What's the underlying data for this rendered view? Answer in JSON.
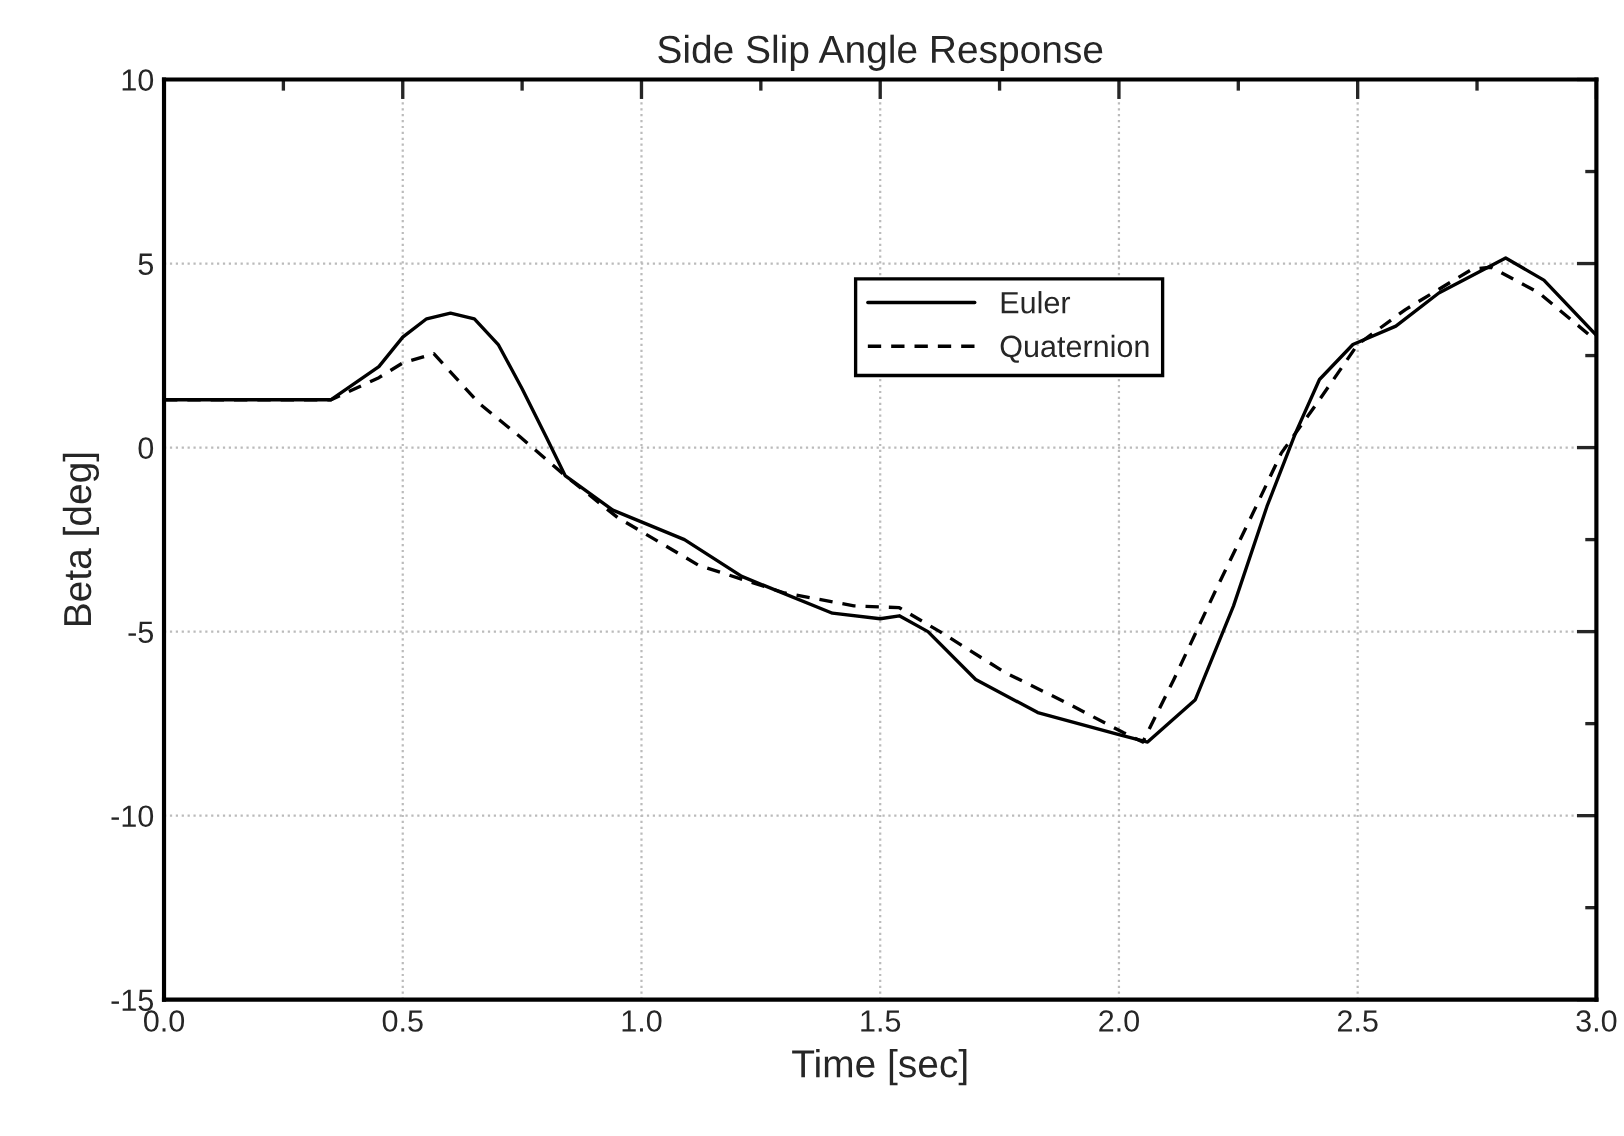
{
  "chart_data": {
    "type": "line",
    "title": "Side Slip Angle Response",
    "xlabel": "Time [sec]",
    "ylabel": "Beta [deg]",
    "xlim": [
      0,
      3
    ],
    "ylim": [
      -15,
      10
    ],
    "xticks": [
      {
        "value": 0,
        "label": "0.0"
      },
      0.5,
      {
        "value": 1,
        "label": "1.0"
      },
      1.5,
      {
        "value": 2,
        "label": "2.0"
      },
      2.5,
      {
        "value": 3,
        "label": "3.0"
      }
    ],
    "yticks": [
      -15,
      -10,
      -5,
      0,
      5,
      10
    ],
    "grid": true,
    "legend": "top center",
    "series": [
      {
        "name": "Euler",
        "color": "#000000",
        "line_style": "solid",
        "x": [
          0,
          0.35,
          0.45,
          0.5,
          0.55,
          0.6,
          0.65,
          0.7,
          0.75,
          0.8,
          0.84,
          0.94,
          1.09,
          1.21,
          1.4,
          1.5,
          1.54,
          1.6,
          1.7,
          1.83,
          2.0,
          2.06,
          2.16,
          2.24,
          2.31,
          2.37,
          2.42,
          2.49,
          2.58,
          2.67,
          2.81,
          2.89,
          3.0
        ],
        "values": [
          1.3,
          1.3,
          2.2,
          3.0,
          3.5,
          3.65,
          3.5,
          2.8,
          1.6,
          0.3,
          -0.76,
          -1.7,
          -2.5,
          -3.5,
          -4.5,
          -4.65,
          -4.57,
          -5.0,
          -6.3,
          -7.2,
          -7.8,
          -8.0,
          -6.85,
          -4.3,
          -1.6,
          0.4,
          1.85,
          2.8,
          3.3,
          4.2,
          5.15,
          4.55,
          3.05
        ]
      },
      {
        "name": "Quaternion",
        "color": "#000000",
        "line_style": "dashed",
        "x": [
          0,
          0.35,
          0.45,
          0.5,
          0.565,
          0.66,
          0.745,
          0.84,
          0.95,
          1.12,
          1.3,
          1.445,
          1.54,
          1.625,
          1.76,
          1.9,
          2.01,
          2.05,
          2.115,
          2.2,
          2.28,
          2.34,
          2.42,
          2.5,
          2.6,
          2.74,
          2.78,
          2.88,
          3.0
        ],
        "values": [
          1.3,
          1.3,
          1.9,
          2.3,
          2.55,
          1.2,
          0.3,
          -0.76,
          -1.9,
          -3.2,
          -3.95,
          -4.3,
          -4.35,
          -5.0,
          -6.1,
          -7.0,
          -7.75,
          -8.0,
          -6.3,
          -3.95,
          -1.8,
          -0.15,
          1.3,
          2.8,
          3.75,
          4.85,
          4.9,
          4.2,
          2.9
        ]
      }
    ]
  }
}
